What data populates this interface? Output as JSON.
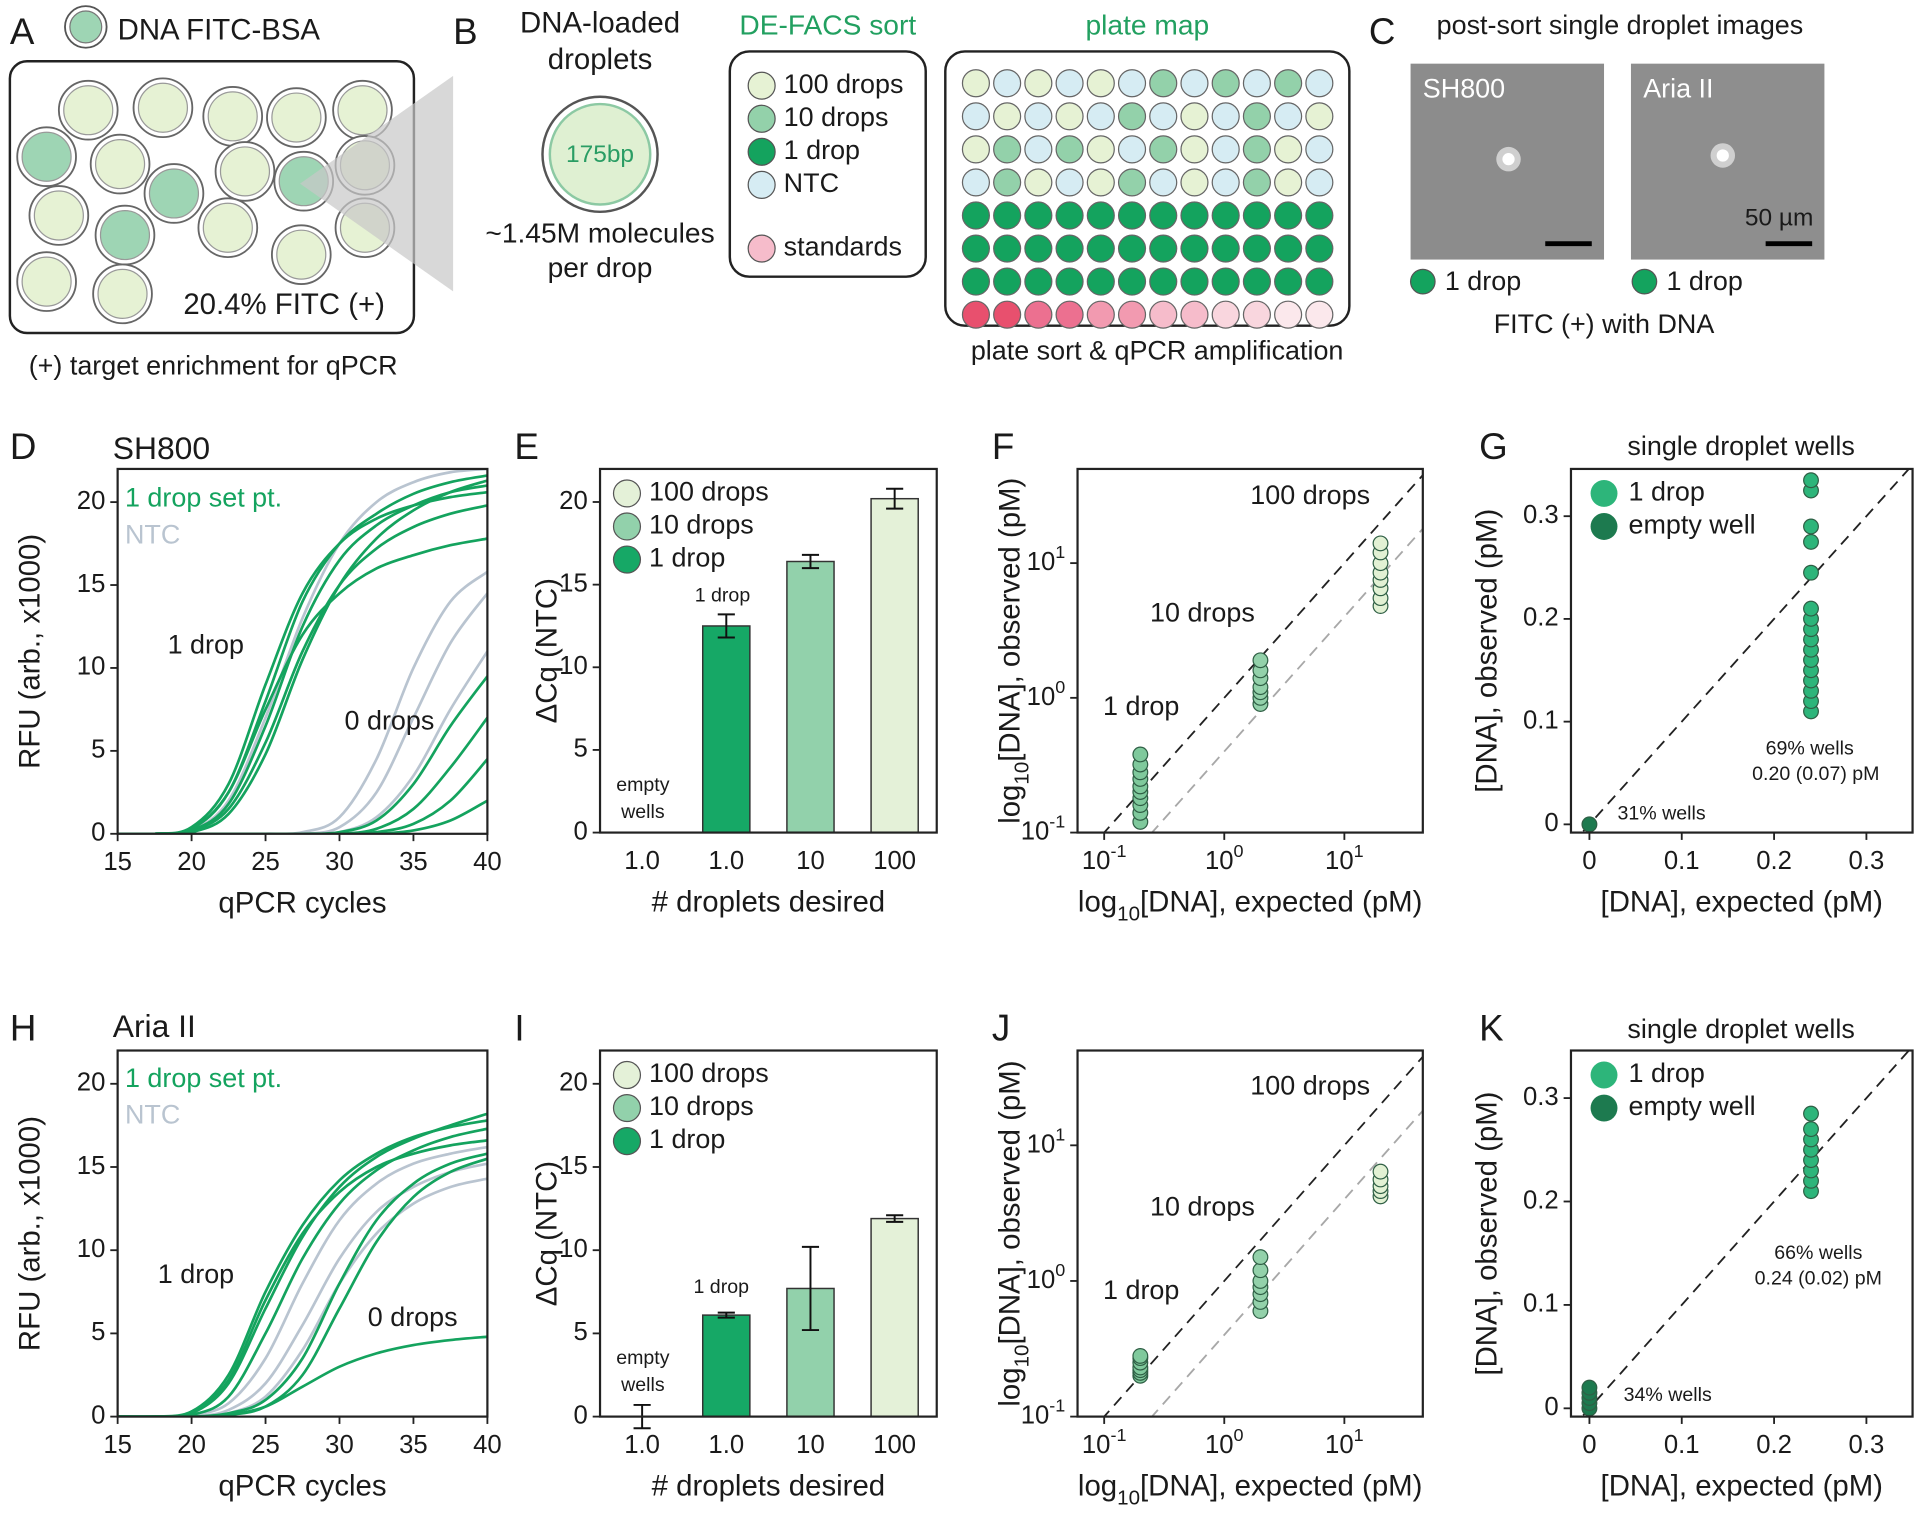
{
  "panels": {
    "A": {
      "letter": "A",
      "legend": "DNA FITC-BSA",
      "fraction": "20.4% FITC (+)",
      "caption": "(+) target enrichment for qPCR"
    },
    "B": {
      "letter": "B",
      "droplet_title": [
        "DNA-loaded",
        "droplets"
      ],
      "insert": "175bp",
      "load": [
        "~1.45M molecules",
        "per drop"
      ],
      "sort_title": "DE-FACS sort",
      "sort_legend": [
        "100 drops",
        "10 drops",
        "1 drop",
        "NTC",
        "standards"
      ],
      "map_title": "plate map",
      "map_caption": "plate sort & qPCR amplification"
    },
    "C": {
      "letter": "C",
      "title": "post-sort single droplet images",
      "images": [
        {
          "label": "SH800",
          "legend": "1 drop"
        },
        {
          "label": "Aria II",
          "legend": "1 drop"
        }
      ],
      "scale": "50 µm",
      "caption": "FITC (+) with DNA"
    }
  },
  "chart_data": [
    {
      "type": "line",
      "panel_label": "D",
      "title": "SH800",
      "xlabel": "qPCR cycles",
      "ylabel": "RFU (arb., x1000)",
      "x": [
        15,
        17.5,
        20,
        22.5,
        25,
        27.5,
        30,
        32.5,
        35,
        37.5,
        40
      ],
      "xlim": [
        15,
        40
      ],
      "xticks": [
        15,
        20,
        25,
        30,
        35,
        40
      ],
      "ylim": [
        0,
        22
      ],
      "yticks": [
        0,
        5,
        10,
        15,
        20
      ],
      "legend": "upper left",
      "series": [
        {
          "name": "1 drop set pt.",
          "color": "#14a35e",
          "curves": [
            [
              0,
              0,
              0.3,
              2.5,
              8,
              14,
              17.5,
              19.3,
              20.5,
              21.2,
              21.6
            ],
            [
              0,
              0,
              0.2,
              1.8,
              6.5,
              12.5,
              16.5,
              18.6,
              19.8,
              20.6,
              21
            ],
            [
              0,
              0,
              0.4,
              3,
              9,
              14.5,
              17.5,
              19,
              19.8,
              20.3,
              20.6
            ],
            [
              0,
              0,
              0.2,
              1.5,
              5.5,
              11,
              15,
              17.2,
              18.5,
              19.3,
              19.8
            ],
            [
              0,
              0,
              0.3,
              2.5,
              7.5,
              12,
              14.5,
              16,
              16.8,
              17.4,
              17.8
            ],
            [
              0,
              0,
              0.1,
              1.2,
              4.8,
              10.5,
              15,
              17.8,
              19.5,
              20.6,
              21.3
            ],
            [
              0,
              0,
              0,
              0,
              0,
              0,
              0.1,
              0.8,
              3,
              6.5,
              9.5
            ],
            [
              0,
              0,
              0,
              0,
              0,
              0,
              0,
              0.3,
              1.5,
              4,
              7
            ],
            [
              0,
              0,
              0,
              0,
              0,
              0,
              0,
              0.1,
              0.6,
              2,
              4.5
            ],
            [
              0,
              0,
              0,
              0,
              0,
              0,
              0,
              0,
              0.2,
              0.8,
              2
            ]
          ]
        },
        {
          "name": "NTC",
          "color": "#b9c4d0",
          "curves": [
            [
              0,
              0,
              0.2,
              2,
              7,
              13,
              17.5,
              20,
              21.2,
              21.8,
              22
            ],
            [
              0,
              0,
              0,
              0,
              0,
              0.1,
              1,
              4.5,
              10,
              14,
              15.8
            ],
            [
              0,
              0,
              0,
              0,
              0,
              0,
              0.4,
              2.5,
              7,
              11.5,
              14.5
            ],
            [
              0,
              0,
              0,
              0,
              0,
              0,
              0.1,
              1,
              3.5,
              7.5,
              11
            ]
          ]
        }
      ],
      "annotations": [
        "1 drop",
        "0 drops"
      ]
    },
    {
      "type": "bar",
      "panel_label": "E",
      "xlabel": "# droplets desired",
      "ylabel": "ΔCq (NTC)",
      "categories": [
        "1.0",
        "1.0",
        "10",
        "100"
      ],
      "values": [
        0,
        12.5,
        16.4,
        20.2
      ],
      "errors": [
        null,
        0.7,
        0.4,
        0.6
      ],
      "colors": [
        "#16a866",
        "#16a866",
        "#92d1ab",
        "#e4f1d8"
      ],
      "ylim": [
        0,
        22
      ],
      "yticks": [
        0,
        5,
        10,
        15,
        20
      ],
      "legend": {
        "position": "upper left",
        "entries": [
          {
            "name": "100 drops",
            "color": "#e4f1d8"
          },
          {
            "name": "10 drops",
            "color": "#92d1ab"
          },
          {
            "name": "1 drop",
            "color": "#16a866"
          }
        ]
      },
      "annotations": [
        "1 drop",
        "empty",
        "wells"
      ]
    },
    {
      "type": "scatter",
      "panel_label": "F",
      "xlabel": [
        "log",
        "10",
        "[DNA], expected (pM)"
      ],
      "ylabel": [
        "log",
        "10",
        "[DNA], observed (pM)"
      ],
      "xscale": "log",
      "yscale": "log",
      "xlim": [
        0.06,
        45
      ],
      "ylim": [
        0.1,
        50
      ],
      "xticks": [
        {
          "value": 0.1,
          "label": "10",
          "exponent": "-1"
        },
        {
          "value": 1,
          "label": "10",
          "exponent": "0"
        },
        {
          "value": 10,
          "label": "10",
          "exponent": "1"
        }
      ],
      "yticks": [
        {
          "value": 0.1,
          "label": "10",
          "exponent": "-1"
        },
        {
          "value": 1,
          "label": "10",
          "exponent": "0"
        },
        {
          "value": 10,
          "label": "10",
          "exponent": "1"
        }
      ],
      "reference_lines": [
        {
          "ratio": 1,
          "color": "#222222"
        },
        {
          "ratio": 0.4,
          "color": "#a8a8a8"
        }
      ],
      "series": [
        {
          "color": "#7fc99c",
          "x": [
            0.2,
            0.2,
            0.2,
            0.2,
            0.2,
            0.2,
            0.2,
            0.2,
            0.2,
            0.2
          ],
          "values": [
            0.12,
            0.14,
            0.16,
            0.18,
            0.2,
            0.22,
            0.25,
            0.28,
            0.32,
            0.38
          ]
        },
        {
          "color": "#93d1aa",
          "x": [
            2,
            2,
            2,
            2,
            2,
            2,
            2
          ],
          "values": [
            0.9,
            1.0,
            1.1,
            1.2,
            1.4,
            1.6,
            1.9
          ]
        },
        {
          "color": "#e2f1d4",
          "x": [
            20,
            20,
            20,
            20,
            20,
            20,
            20,
            20
          ],
          "values": [
            4.8,
            5.5,
            6.5,
            7.5,
            8.5,
            10,
            12,
            14
          ]
        }
      ],
      "annotations": [
        "100 drops",
        "10 drops",
        "1 drop"
      ]
    },
    {
      "type": "scatter",
      "panel_label": "G",
      "title": "single droplet wells",
      "xlabel": "[DNA], expected (pM)",
      "ylabel": "[DNA], observed (pM)",
      "xlim": [
        -0.02,
        0.35
      ],
      "ylim": [
        -0.008,
        0.346
      ],
      "xticks": [
        0,
        0.1,
        0.2,
        0.3
      ],
      "yticks": [
        0,
        0.1,
        0.2,
        0.3
      ],
      "reference_lines": [
        {
          "ratio": 1,
          "color": "#222222"
        }
      ],
      "legend": "upper left",
      "series": [
        {
          "name": "1 drop",
          "color": "#2db57a",
          "x": [
            0.24,
            0.24,
            0.24,
            0.24,
            0.24,
            0.24,
            0.24,
            0.24,
            0.24,
            0.24,
            0.24,
            0.24,
            0.24,
            0.24,
            0.24,
            0.24
          ],
          "values": [
            0.11,
            0.12,
            0.13,
            0.14,
            0.15,
            0.16,
            0.17,
            0.18,
            0.19,
            0.2,
            0.21,
            0.245,
            0.275,
            0.29,
            0.325,
            0.335
          ]
        },
        {
          "name": "empty well",
          "color": "#1d7a4f",
          "x": [
            0
          ],
          "values": [
            0
          ]
        }
      ],
      "annotations": [
        "69% wells",
        "0.20 (0.07) pM",
        "31% wells"
      ]
    },
    {
      "type": "line",
      "panel_label": "H",
      "title": "Aria II",
      "xlabel": "qPCR cycles",
      "ylabel": "RFU (arb., x1000)",
      "x": [
        15,
        17.5,
        20,
        22.5,
        25,
        27.5,
        30,
        32.5,
        35,
        37.5,
        40
      ],
      "xlim": [
        15,
        40
      ],
      "xticks": [
        15,
        20,
        25,
        30,
        35,
        40
      ],
      "ylim": [
        0,
        22
      ],
      "yticks": [
        0,
        5,
        10,
        15,
        20
      ],
      "legend": "upper left",
      "series": [
        {
          "name": "1 drop set pt.",
          "color": "#14a35e",
          "curves": [
            [
              0,
              0,
              0.3,
              2.5,
              7.5,
              11.5,
              14.2,
              15.8,
              16.8,
              17.4,
              17.8
            ],
            [
              0,
              0,
              0.2,
              2,
              6.5,
              10.8,
              13.8,
              15.6,
              16.7,
              17.5,
              18.2
            ],
            [
              0,
              0,
              0.3,
              2.2,
              7,
              11,
              13.5,
              15,
              15.8,
              16.3,
              16.6
            ],
            [
              0,
              0,
              0.1,
              1.2,
              5,
              9.5,
              12.8,
              14.8,
              16,
              16.8,
              17.3
            ],
            [
              0,
              0,
              0,
              0.2,
              1,
              3.5,
              8,
              11.8,
              14,
              15.2,
              15.8
            ],
            [
              0,
              0,
              0,
              0.1,
              0.6,
              2.5,
              6.5,
              10.5,
              13.2,
              14.7,
              15.5
            ],
            [
              0,
              0,
              0,
              0.1,
              0.6,
              1.8,
              3,
              3.8,
              4.3,
              4.6,
              4.8
            ]
          ]
        },
        {
          "name": "NTC",
          "color": "#b9c4d0",
          "curves": [
            [
              0,
              0,
              0.1,
              0.8,
              3.5,
              8,
              11.8,
              14,
              15.2,
              15.8,
              16.2
            ],
            [
              0,
              0,
              0,
              0.4,
              2,
              5.5,
              9.5,
              12.3,
              13.8,
              14.7,
              15.2
            ],
            [
              0,
              0,
              0,
              0.2,
              1.2,
              4,
              8,
              11,
              12.8,
              13.8,
              14.3
            ]
          ]
        }
      ],
      "annotations": [
        "1 drop",
        "0 drops"
      ]
    },
    {
      "type": "bar",
      "panel_label": "I",
      "xlabel": "# droplets desired",
      "ylabel": "ΔCq (NTC)",
      "categories": [
        "1.0",
        "1.0",
        "10",
        "100"
      ],
      "values": [
        0,
        6.1,
        7.7,
        11.9
      ],
      "errors": [
        0.7,
        0.15,
        2.5,
        0.2
      ],
      "colors": [
        "#16a866",
        "#16a866",
        "#92d1ab",
        "#e4f1d8"
      ],
      "ylim": [
        0,
        22
      ],
      "yticks": [
        0,
        5,
        10,
        15,
        20
      ],
      "legend": {
        "position": "upper left",
        "entries": [
          {
            "name": "100 drops",
            "color": "#e4f1d8"
          },
          {
            "name": "10 drops",
            "color": "#92d1ab"
          },
          {
            "name": "1 drop",
            "color": "#16a866"
          }
        ]
      },
      "annotations": [
        "1 drop",
        "empty",
        "wells"
      ]
    },
    {
      "type": "scatter",
      "panel_label": "J",
      "xlabel": [
        "log",
        "10",
        "[DNA], expected (pM)"
      ],
      "ylabel": [
        "log",
        "10",
        "[DNA], observed (pM)"
      ],
      "xscale": "log",
      "yscale": "log",
      "xlim": [
        0.06,
        45
      ],
      "ylim": [
        0.1,
        50
      ],
      "xticks": [
        {
          "value": 0.1,
          "label": "10",
          "exponent": "-1"
        },
        {
          "value": 1,
          "label": "10",
          "exponent": "0"
        },
        {
          "value": 10,
          "label": "10",
          "exponent": "1"
        }
      ],
      "yticks": [
        {
          "value": 0.1,
          "label": "10",
          "exponent": "-1"
        },
        {
          "value": 1,
          "label": "10",
          "exponent": "0"
        },
        {
          "value": 10,
          "label": "10",
          "exponent": "1"
        }
      ],
      "reference_lines": [
        {
          "ratio": 1,
          "color": "#222222"
        },
        {
          "ratio": 0.4,
          "color": "#a8a8a8"
        }
      ],
      "series": [
        {
          "color": "#7fc99c",
          "x": [
            0.2,
            0.2,
            0.2,
            0.2,
            0.2,
            0.2,
            0.2
          ],
          "values": [
            0.2,
            0.21,
            0.22,
            0.23,
            0.25,
            0.27,
            0.28
          ]
        },
        {
          "color": "#93d1aa",
          "x": [
            2,
            2,
            2,
            2,
            2,
            2,
            2
          ],
          "values": [
            0.6,
            0.7,
            0.8,
            0.9,
            1.0,
            1.2,
            1.5
          ]
        },
        {
          "color": "#e2f1d4",
          "x": [
            20,
            20,
            20,
            20,
            20
          ],
          "values": [
            4.2,
            4.6,
            5,
            5.6,
            6.4
          ]
        }
      ],
      "annotations": [
        "100 drops",
        "10 drops",
        "1 drop"
      ]
    },
    {
      "type": "scatter",
      "panel_label": "K",
      "title": "single droplet wells",
      "xlabel": "[DNA], expected (pM)",
      "ylabel": "[DNA], observed (pM)",
      "xlim": [
        -0.02,
        0.35
      ],
      "ylim": [
        -0.008,
        0.346
      ],
      "xticks": [
        0,
        0.1,
        0.2,
        0.3
      ],
      "yticks": [
        0,
        0.1,
        0.2,
        0.3
      ],
      "reference_lines": [
        {
          "ratio": 1,
          "color": "#222222"
        }
      ],
      "legend": "upper left",
      "series": [
        {
          "name": "1 drop",
          "color": "#2db57a",
          "x": [
            0.24,
            0.24,
            0.24,
            0.24,
            0.24,
            0.24,
            0.24,
            0.24
          ],
          "values": [
            0.21,
            0.22,
            0.23,
            0.24,
            0.25,
            0.26,
            0.27,
            0.285
          ]
        },
        {
          "name": "empty well",
          "color": "#1d7a4f",
          "x": [
            0,
            0,
            0,
            0,
            0
          ],
          "values": [
            0,
            0.005,
            0.01,
            0.015,
            0.02
          ]
        }
      ],
      "annotations": [
        "66% wells",
        "0.24 (0.02) pM",
        "34% wells"
      ]
    }
  ]
}
